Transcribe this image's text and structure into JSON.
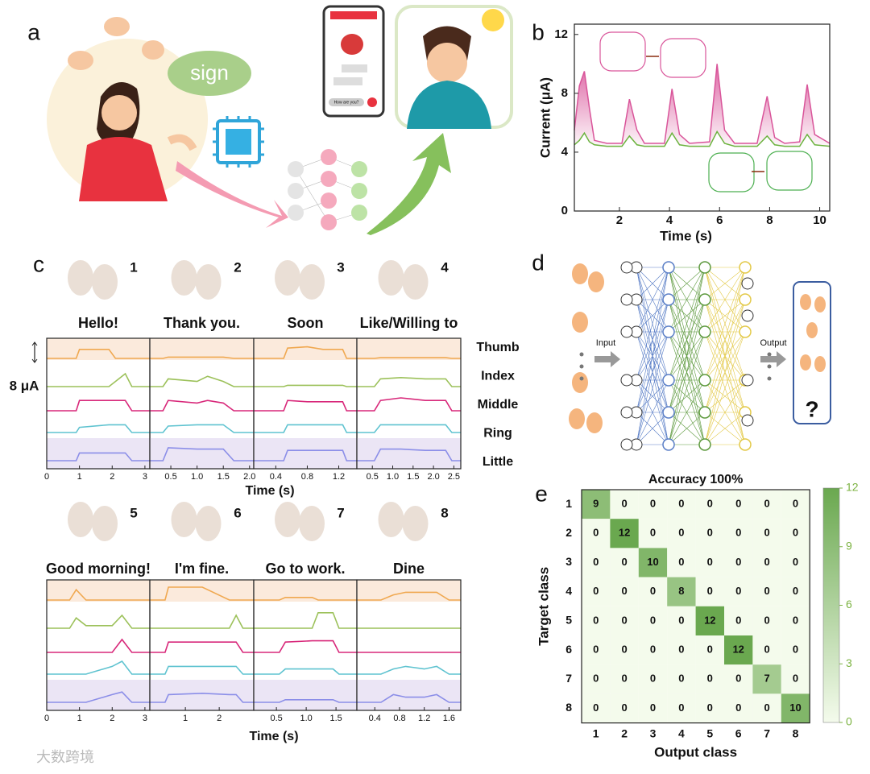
{
  "panel_labels": [
    "a",
    "b",
    "c",
    "d",
    "e"
  ],
  "illustration_a": {
    "bubble": "sign",
    "phone_text": "How are you?"
  },
  "network_d": {
    "input": "Input",
    "output": "Output",
    "unknown": "?"
  },
  "watermark": "大数跨境",
  "chart_data": [
    {
      "type": "line",
      "xlabel": "Time (s)",
      "ylabel": "Current (μA)",
      "xlim": [
        0.2,
        10.4
      ],
      "ylim": [
        0,
        12.7
      ],
      "xticks": [
        2,
        4,
        6,
        8,
        10
      ],
      "yticks": [
        0,
        4,
        8,
        12
      ],
      "x": [
        0.2,
        0.4,
        0.6,
        0.8,
        1.0,
        1.5,
        2.1,
        2.4,
        2.7,
        3.0,
        3.8,
        4.1,
        4.4,
        4.8,
        5.6,
        5.9,
        6.2,
        6.6,
        7.5,
        7.9,
        8.2,
        8.6,
        9.2,
        9.5,
        9.8,
        10.4
      ],
      "series": [
        {
          "color": "#d9559a",
          "values": [
            5.5,
            8.5,
            9.5,
            7,
            4.8,
            4.6,
            4.6,
            7.6,
            5.5,
            4.6,
            4.6,
            8.3,
            5.2,
            4.6,
            4.7,
            10,
            5.5,
            4.6,
            4.6,
            7.8,
            5,
            4.6,
            4.7,
            8.6,
            5.2,
            4.6
          ]
        },
        {
          "color": "#6cb33f",
          "values": [
            4.5,
            4.8,
            5.3,
            4.7,
            4.5,
            4.4,
            4.4,
            5.1,
            4.5,
            4.4,
            4.4,
            5.3,
            4.5,
            4.4,
            4.4,
            5.4,
            4.6,
            4.4,
            4.4,
            5.1,
            4.5,
            4.4,
            4.4,
            5.2,
            4.5,
            4.4
          ]
        }
      ]
    },
    {
      "type": "traces",
      "xlabels": [
        "Time  (s)",
        "Time (s)"
      ],
      "scale_bar": "8 μA",
      "fingers": [
        {
          "name": "Thumb",
          "color": "#f0a850"
        },
        {
          "name": "Index",
          "color": "#9cc15a"
        },
        {
          "name": "Middle",
          "color": "#d8287a"
        },
        {
          "name": "Ring",
          "color": "#5fc3d0"
        },
        {
          "name": "Little",
          "color": "#8b8ee8"
        }
      ],
      "panels": [
        {
          "number": "1",
          "label": "Hello!",
          "xlim": [
            0,
            3.15
          ],
          "xticks": [
            0,
            1,
            2,
            3
          ],
          "x": [
            0,
            0.9,
            1.0,
            1.9,
            2.1,
            2.4,
            2.6,
            3.15
          ],
          "values": [
            [
              0,
              0,
              3.5,
              3.5,
              0,
              0,
              0,
              0
            ],
            [
              0,
              0,
              0,
              0,
              2,
              5,
              0,
              0
            ],
            [
              0,
              0,
              4,
              4,
              4,
              4,
              0,
              0
            ],
            [
              0,
              0,
              2,
              3,
              3,
              3,
              0,
              0
            ],
            [
              0,
              0,
              3,
              3,
              3,
              3,
              0,
              0
            ]
          ]
        },
        {
          "number": "2",
          "label": "Thank you.",
          "xlim": [
            0.1,
            2.08
          ],
          "xticks": [
            0.5,
            {
              "value": 1,
              "label": "1.0"
            },
            1.5,
            {
              "value": 2,
              "label": "2.0"
            }
          ],
          "x": [
            0.1,
            0.35,
            0.45,
            1.0,
            1.2,
            1.5,
            1.7,
            2.08
          ],
          "values": [
            [
              0,
              0,
              0.5,
              0.5,
              0.5,
              0.5,
              0,
              0
            ],
            [
              0,
              0,
              3,
              2,
              4,
              2,
              0,
              0
            ],
            [
              0,
              0,
              4,
              3,
              4,
              3,
              0,
              0
            ],
            [
              0,
              0,
              2.5,
              3,
              3,
              3,
              0,
              0
            ],
            [
              0,
              0,
              5,
              4.5,
              4.5,
              4.5,
              0,
              0
            ]
          ]
        },
        {
          "number": "3",
          "label": "Soon",
          "xlim": [
            0.12,
            1.43
          ],
          "xticks": [
            0.4,
            0.8,
            1.2
          ],
          "x": [
            0.12,
            0.5,
            0.55,
            0.8,
            1.0,
            1.25,
            1.3,
            1.43
          ],
          "values": [
            [
              0,
              0,
              4,
              4.5,
              3.5,
              3.5,
              0,
              0
            ],
            [
              0,
              0,
              0.5,
              0.5,
              0.5,
              0.5,
              0,
              0
            ],
            [
              0,
              0,
              4,
              3.5,
              3.5,
              3.5,
              0,
              0
            ],
            [
              0,
              0,
              3,
              3,
              3,
              3,
              0,
              0
            ],
            [
              0,
              0,
              4,
              4,
              4,
              4,
              0,
              0
            ]
          ]
        },
        {
          "number": "4",
          "label": "Like/Willing to",
          "xlim": [
            0.12,
            2.67
          ],
          "xticks": [
            0.5,
            {
              "value": 1,
              "label": "1.0"
            },
            1.5,
            {
              "value": 2,
              "label": "2.0"
            },
            2.5
          ],
          "x": [
            0.12,
            0.55,
            0.7,
            1.2,
            1.8,
            2.3,
            2.45,
            2.67
          ],
          "values": [
            [
              0,
              0,
              0.3,
              0.3,
              0.3,
              0.3,
              0,
              0
            ],
            [
              0,
              0,
              3,
              3.5,
              3,
              3,
              0,
              0
            ],
            [
              0,
              0,
              4,
              5,
              4,
              4,
              0,
              0
            ],
            [
              0,
              0,
              3,
              3,
              3,
              3,
              0,
              0
            ],
            [
              0,
              0,
              4.5,
              4.5,
              4,
              4,
              0,
              0
            ]
          ]
        },
        {
          "number": "5",
          "label": "Good morning!",
          "xlim": [
            0,
            3.15
          ],
          "xticks": [
            0,
            1,
            2,
            3
          ],
          "x": [
            0,
            0.7,
            0.9,
            1.2,
            2.0,
            2.3,
            2.6,
            3.15
          ],
          "values": [
            [
              0,
              0,
              4,
              0,
              0,
              0,
              0,
              0
            ],
            [
              0,
              0,
              4,
              1,
              1,
              5,
              0,
              0
            ],
            [
              0,
              0,
              0,
              0,
              0,
              5,
              0,
              0
            ],
            [
              0,
              0,
              0,
              0,
              3,
              5,
              0,
              0
            ],
            [
              0,
              0,
              0,
              0,
              3,
              4,
              0,
              0
            ]
          ]
        },
        {
          "number": "6",
          "label": "I'm fine.",
          "xlim": [
            -0.05,
            3.02
          ],
          "xticks": [
            1,
            2
          ],
          "x": [
            -0.05,
            0.4,
            0.5,
            1.5,
            2.3,
            2.5,
            2.7,
            3.02
          ],
          "values": [
            [
              0,
              0,
              5,
              5,
              0,
              0,
              0,
              0
            ],
            [
              0,
              0,
              0,
              0,
              0,
              5,
              0,
              0
            ],
            [
              0,
              0,
              4,
              4,
              4,
              4,
              0,
              0
            ],
            [
              0,
              0,
              3,
              3,
              3,
              3,
              0,
              0
            ],
            [
              0,
              0,
              3,
              3.5,
              3,
              3,
              0,
              0
            ]
          ]
        },
        {
          "number": "7",
          "label": "Go to work.",
          "xlim": [
            0.12,
            1.85
          ],
          "xticks": [
            0.5,
            {
              "value": 1,
              "label": "1.0"
            },
            1.5
          ],
          "x": [
            0.12,
            0.55,
            0.65,
            1.1,
            1.2,
            1.45,
            1.55,
            1.85
          ],
          "values": [
            [
              0,
              0,
              1,
              1,
              0,
              0,
              0,
              0
            ],
            [
              0,
              0,
              0,
              0,
              6,
              6,
              0,
              0
            ],
            [
              0,
              0,
              4,
              4.5,
              4.5,
              4.5,
              0,
              0
            ],
            [
              0,
              0,
              2,
              2,
              2,
              2,
              0,
              0
            ],
            [
              0,
              0,
              1,
              1,
              1,
              1,
              0,
              0
            ]
          ]
        },
        {
          "number": "8",
          "label": "Dine",
          "xlim": [
            0.11,
            1.79
          ],
          "xticks": [
            0.4,
            0.8,
            1.2,
            1.6
          ],
          "x": [
            0.11,
            0.5,
            0.7,
            0.9,
            1.2,
            1.4,
            1.6,
            1.79
          ],
          "values": [
            [
              0,
              0,
              2,
              3,
              3,
              3,
              0,
              0
            ],
            [
              0,
              0,
              0,
              0,
              0,
              0,
              0,
              0
            ],
            [
              0,
              0,
              0,
              0,
              0,
              0,
              0,
              0
            ],
            [
              0,
              0,
              2,
              3,
              2,
              3,
              0,
              0
            ],
            [
              0,
              0,
              3,
              2,
              2,
              3,
              0,
              0
            ]
          ]
        }
      ]
    },
    {
      "type": "heatmap",
      "title": "Accuracy 100%",
      "xlabel": "Output class",
      "ylabel": "Target class",
      "categories": [
        "1",
        "2",
        "3",
        "4",
        "5",
        "6",
        "7",
        "8"
      ],
      "values": [
        [
          9,
          0,
          0,
          0,
          0,
          0,
          0,
          0
        ],
        [
          0,
          12,
          0,
          0,
          0,
          0,
          0,
          0
        ],
        [
          0,
          0,
          10,
          0,
          0,
          0,
          0,
          0
        ],
        [
          0,
          0,
          0,
          8,
          0,
          0,
          0,
          0
        ],
        [
          0,
          0,
          0,
          0,
          12,
          0,
          0,
          0
        ],
        [
          0,
          0,
          0,
          0,
          0,
          12,
          0,
          0
        ],
        [
          0,
          0,
          0,
          0,
          0,
          0,
          7,
          0
        ],
        [
          0,
          0,
          0,
          0,
          0,
          0,
          0,
          10
        ]
      ],
      "colorbar_lim": [
        0,
        12
      ],
      "colorbar_ticks": [
        0,
        3,
        6,
        9,
        12
      ],
      "colors": [
        "#f4fbec",
        "#6aa84f"
      ],
      "tick_color": "#7cb342"
    }
  ]
}
